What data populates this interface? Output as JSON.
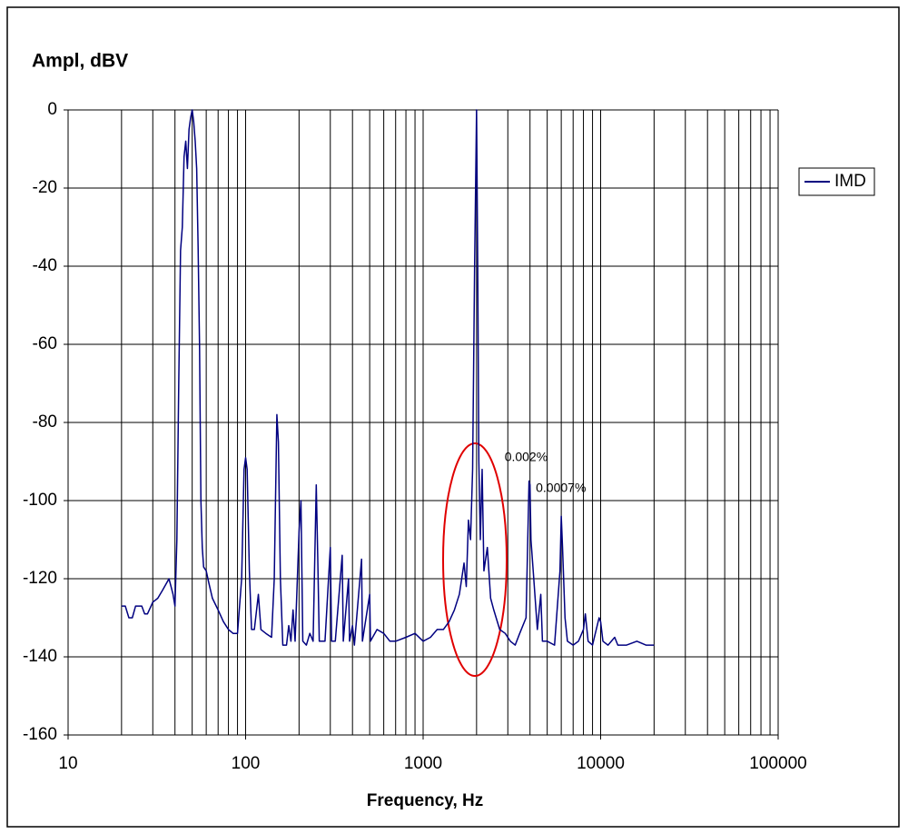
{
  "chart_data": {
    "type": "line",
    "title": "Ampl, dBV",
    "x_label": "Frequency, Hz",
    "log_x": true,
    "grid": true,
    "legend": "right",
    "xlim": [
      10,
      100000
    ],
    "xticks": [
      10,
      100,
      1000,
      10000,
      100000
    ],
    "xminor_ticks": [
      20,
      30,
      40,
      50,
      60,
      70,
      80,
      90,
      200,
      300,
      400,
      500,
      600,
      700,
      800,
      900,
      2000,
      3000,
      4000,
      5000,
      6000,
      7000,
      8000,
      9000,
      20000,
      30000,
      40000,
      50000,
      60000,
      70000,
      80000,
      90000
    ],
    "ylim": [
      -160,
      0
    ],
    "yticks": [
      0,
      -20,
      -40,
      -60,
      -80,
      -100,
      -120,
      -140,
      -160
    ],
    "annotations": [
      {
        "text": "0.002%",
        "x": 4000,
        "y": -92
      },
      {
        "text": "0.0007%",
        "x": 6000,
        "y": -100
      }
    ],
    "series": [
      {
        "name": "IMD",
        "color": "#000080",
        "x": [
          20,
          21,
          22,
          23,
          24,
          25,
          26,
          27,
          28,
          30,
          32,
          34,
          36,
          37,
          38,
          39,
          40,
          41,
          42,
          43,
          44,
          45,
          46,
          47,
          48,
          49,
          50,
          51,
          52,
          53,
          54,
          55,
          56,
          57,
          58,
          60,
          62,
          65,
          70,
          75,
          80,
          85,
          90,
          95,
          98,
          100,
          102,
          105,
          108,
          112,
          118,
          122,
          130,
          140,
          145,
          150,
          153,
          157,
          162,
          170,
          175,
          180,
          185,
          190,
          200,
          205,
          210,
          220,
          230,
          240,
          250,
          255,
          260,
          280,
          300,
          305,
          320,
          350,
          355,
          380,
          385,
          400,
          410,
          450,
          455,
          500,
          505,
          550,
          600,
          650,
          700,
          800,
          900,
          1000,
          1100,
          1200,
          1300,
          1400,
          1500,
          1600,
          1700,
          1750,
          1800,
          1850,
          1900,
          1950,
          2000,
          2030,
          2060,
          2100,
          2150,
          2200,
          2300,
          2400,
          2500,
          2700,
          2900,
          3100,
          3300,
          3500,
          3800,
          3950,
          4000,
          4050,
          4200,
          4400,
          4600,
          4700,
          5000,
          5500,
          5900,
          6000,
          6100,
          6300,
          6500,
          7000,
          7500,
          8000,
          8200,
          8500,
          9000,
          9800,
          10000,
          10300,
          11000,
          12000,
          12500,
          14000,
          16000,
          18000,
          20000
        ],
        "values": [
          -127,
          -127,
          -130,
          -130,
          -127,
          -127,
          -127,
          -129,
          -129,
          -126,
          -125,
          -123,
          -121,
          -120,
          -122,
          -124,
          -127,
          -110,
          -70,
          -36,
          -30,
          -12,
          -8,
          -15,
          -5,
          -2,
          0,
          -3,
          -8,
          -15,
          -35,
          -60,
          -100,
          -112,
          -117,
          -118,
          -121,
          -125,
          -128,
          -131,
          -133,
          -134,
          -134,
          -120,
          -92,
          -89,
          -92,
          -118,
          -133,
          -133,
          -124,
          -133,
          -134,
          -135,
          -120,
          -78,
          -85,
          -120,
          -137,
          -137,
          -132,
          -136,
          -128,
          -136,
          -108,
          -100,
          -136,
          -137,
          -134,
          -136,
          -96,
          -115,
          -136,
          -136,
          -112,
          -136,
          -136,
          -114,
          -136,
          -120,
          -136,
          -132,
          -137,
          -115,
          -136,
          -124,
          -136,
          -133,
          -134,
          -136,
          -136,
          -135,
          -134,
          -136,
          -135,
          -133,
          -133,
          -131,
          -128,
          -124,
          -116,
          -122,
          -105,
          -110,
          -92,
          -40,
          0,
          -40,
          -90,
          -110,
          -92,
          -118,
          -112,
          -125,
          -128,
          -133,
          -134,
          -136,
          -137,
          -134,
          -130,
          -95,
          -96,
          -110,
          -120,
          -133,
          -124,
          -136,
          -136,
          -137,
          -118,
          -104,
          -112,
          -130,
          -136,
          -137,
          -136,
          -133,
          -129,
          -136,
          -137,
          -130,
          -131,
          -136,
          -137,
          -135,
          -137,
          -137,
          -136,
          -137,
          -137
        ]
      }
    ]
  }
}
